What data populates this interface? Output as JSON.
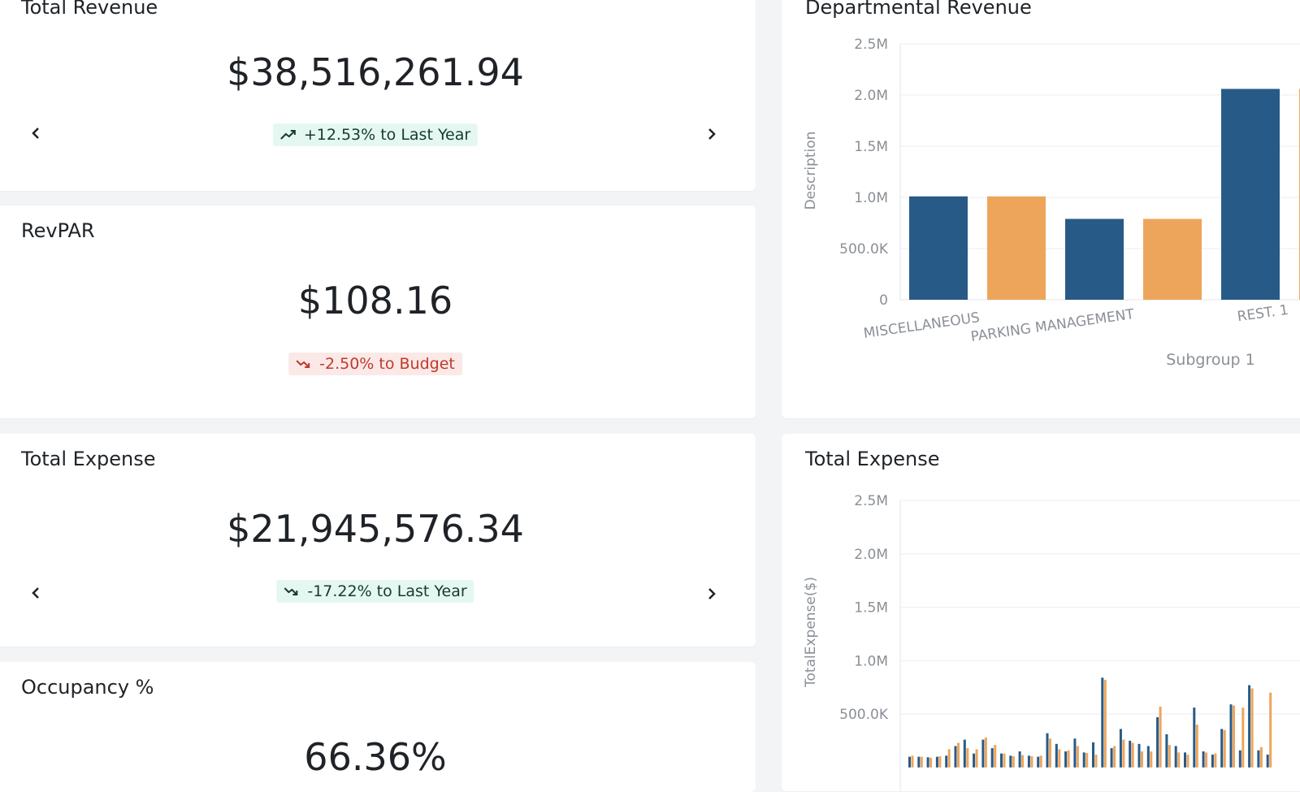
{
  "kpi_cards": {
    "total_revenue": {
      "title": "Total Revenue",
      "value": "$38,516,261.94",
      "badge": "+12.53% to Last Year",
      "trend": "up",
      "badge_color": "#e4f8f1"
    },
    "revpar": {
      "title": "RevPAR",
      "value": "$108.16",
      "badge": "-2.50% to Budget",
      "trend": "down",
      "badge_color": "#fbe9e7"
    },
    "total_expense": {
      "title": "Total Expense",
      "value": "$21,945,576.34",
      "badge": "-17.22% to Last Year",
      "trend": "down",
      "badge_color": "#e4f8f1"
    },
    "occupancy": {
      "title": "Occupancy %",
      "value": "66.36%"
    }
  },
  "icons": {
    "prev": "chevron-left-icon",
    "next": "chevron-right-icon",
    "trend_up": "trending-up-icon",
    "trend_down": "trending-down-icon"
  },
  "colors": {
    "series_blue": "#285a87",
    "series_orange": "#eda55c",
    "good_text": "#173a2d",
    "bad_text": "#c0392b"
  },
  "chart_data": [
    {
      "type": "bar",
      "title": "Departmental Revenue",
      "xlabel": "Subgroup 1",
      "ylabel": "Description",
      "ylim": [
        0,
        2500000
      ],
      "y_ticks": [
        "0",
        "500.0K",
        "1.0M",
        "1.5M",
        "2.0M",
        "2.5M"
      ],
      "categories": [
        "MISCELLANEOUS",
        "PARKING MANAGEMENT",
        "REST. 1"
      ],
      "series": [
        {
          "color": "#285a87",
          "values": [
            1010000,
            790000,
            2060000
          ]
        },
        {
          "color": "#eda55c",
          "values": [
            1010000,
            790000,
            2060000
          ]
        }
      ],
      "grid": true
    },
    {
      "type": "bar",
      "title": "Total Expense",
      "ylabel": "TotalExpense($)",
      "ylim": [
        0,
        2500000
      ],
      "y_ticks": [
        "500.0K",
        "1.0M",
        "1.5M",
        "2.0M",
        "2.5M"
      ],
      "series": [
        {
          "color": "#285a87",
          "values": [
            100000,
            100000,
            95000,
            100000,
            110000,
            200000,
            260000,
            130000,
            260000,
            180000,
            130000,
            110000,
            150000,
            110000,
            100000,
            320000,
            220000,
            150000,
            270000,
            140000,
            235000,
            840000,
            180000,
            360000,
            250000,
            220000,
            200000,
            470000,
            310000,
            200000,
            140000,
            560000,
            150000,
            120000,
            360000,
            590000,
            160000,
            770000,
            160000,
            120000
          ]
        },
        {
          "color": "#eda55c",
          "values": [
            110000,
            100000,
            90000,
            105000,
            170000,
            230000,
            180000,
            170000,
            280000,
            210000,
            130000,
            105000,
            115000,
            105000,
            110000,
            270000,
            170000,
            160000,
            200000,
            135000,
            120000,
            820000,
            200000,
            260000,
            230000,
            150000,
            150000,
            570000,
            210000,
            140000,
            120000,
            400000,
            140000,
            130000,
            350000,
            580000,
            560000,
            740000,
            190000,
            700000
          ]
        }
      ],
      "grid": true
    }
  ]
}
